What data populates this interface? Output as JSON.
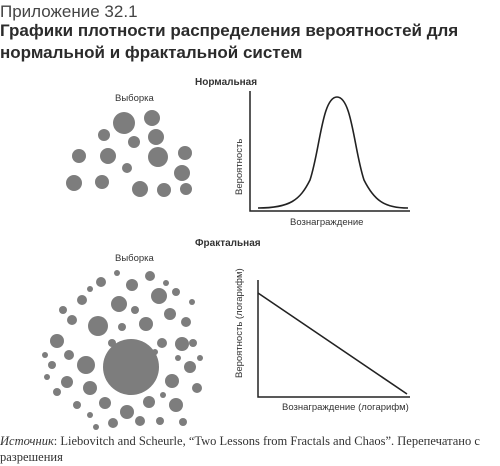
{
  "header": {
    "appendix": "Приложение 32.1",
    "title": "Графики плотности распределения вероятностей для нормальной и фрактальной систем"
  },
  "normal": {
    "section_label": "Нормальная",
    "sample_label": "Выборка",
    "x_label": "Вознаграждение",
    "y_label": "Вероятность"
  },
  "fractal": {
    "section_label": "Фрактальная",
    "sample_label": "Выборка",
    "x_label": "Вознаграждение (логарифм)",
    "y_label": "Вероятность (логарифм)"
  },
  "source": {
    "prefix": "Источник",
    "text": ": Liebovitch and Scheurle, “Two Lessons from Fractals and Chaos”. Перепечатано с разрешения"
  },
  "colors": {
    "circle": "#7d7d7d",
    "line": "#222222"
  }
}
